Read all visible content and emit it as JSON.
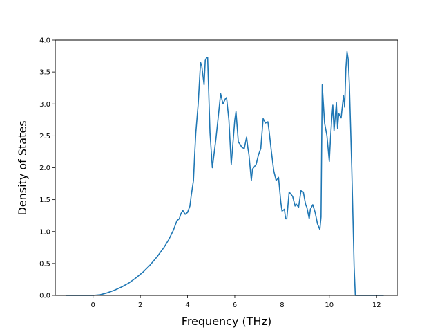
{
  "chart_data": {
    "type": "line",
    "title": "",
    "xlabel": "Frequency (THz)",
    "ylabel": "Density of States",
    "xlim": [
      -1.6,
      12.9
    ],
    "ylim": [
      0.0,
      4.0
    ],
    "xticks": [
      0,
      2,
      4,
      6,
      8,
      10,
      12
    ],
    "xtick_labels": [
      "0",
      "2",
      "4",
      "6",
      "8",
      "10",
      "12"
    ],
    "yticks": [
      0.0,
      0.5,
      1.0,
      1.5,
      2.0,
      2.5,
      3.0,
      3.5,
      4.0
    ],
    "ytick_labels": [
      "0.0",
      "0.5",
      "1.0",
      "1.5",
      "2.0",
      "2.5",
      "3.0",
      "3.5",
      "4.0"
    ],
    "grid": false,
    "line_color": "#1f77b4",
    "series": [
      {
        "x": [
          -1.15,
          0.0,
          0.3,
          0.6,
          0.9,
          1.2,
          1.5,
          1.8,
          2.1,
          2.4,
          2.7,
          3.0,
          3.2,
          3.4,
          3.55,
          3.65,
          3.72,
          3.8,
          3.9,
          4.0,
          4.1,
          4.15,
          4.25,
          4.3,
          4.35,
          4.45,
          4.55,
          4.6,
          4.7,
          4.75,
          4.8,
          4.85,
          4.95,
          5.05,
          5.2,
          5.3,
          5.4,
          5.5,
          5.6,
          5.65,
          5.75,
          5.85,
          6.0,
          6.05,
          6.15,
          6.2,
          6.3,
          6.4,
          6.5,
          6.55,
          6.6,
          6.7,
          6.75,
          6.9,
          7.0,
          7.1,
          7.2,
          7.3,
          7.4,
          7.45,
          7.55,
          7.65,
          7.75,
          7.85,
          7.95,
          8.0,
          8.1,
          8.15,
          8.2,
          8.3,
          8.45,
          8.55,
          8.6,
          8.7,
          8.8,
          8.9,
          9.0,
          9.05,
          9.15,
          9.2,
          9.3,
          9.4,
          9.5,
          9.6,
          9.65,
          9.7,
          9.8,
          9.9,
          10.0,
          10.05,
          10.1,
          10.15,
          10.2,
          10.3,
          10.35,
          10.4,
          10.5,
          10.6,
          10.65,
          10.7,
          10.75,
          10.8,
          10.85,
          10.95,
          11.05,
          11.1,
          12.3
        ],
        "y": [
          0.0,
          0.0,
          0.01,
          0.04,
          0.08,
          0.13,
          0.19,
          0.27,
          0.36,
          0.47,
          0.6,
          0.75,
          0.87,
          1.02,
          1.17,
          1.2,
          1.28,
          1.33,
          1.27,
          1.3,
          1.4,
          1.55,
          1.8,
          2.2,
          2.55,
          3.0,
          3.65,
          3.6,
          3.3,
          3.68,
          3.72,
          3.73,
          2.55,
          2.0,
          2.45,
          2.8,
          3.16,
          3.0,
          3.08,
          3.1,
          2.75,
          2.05,
          2.75,
          2.88,
          2.4,
          2.38,
          2.32,
          2.3,
          2.48,
          2.32,
          2.2,
          1.8,
          1.98,
          2.05,
          2.2,
          2.3,
          2.77,
          2.7,
          2.72,
          2.58,
          2.25,
          1.95,
          1.8,
          1.85,
          1.45,
          1.32,
          1.35,
          1.2,
          1.2,
          1.62,
          1.55,
          1.4,
          1.43,
          1.38,
          1.64,
          1.62,
          1.42,
          1.38,
          1.2,
          1.35,
          1.42,
          1.3,
          1.12,
          1.03,
          1.23,
          3.3,
          2.7,
          2.5,
          2.1,
          2.45,
          2.75,
          2.98,
          2.58,
          3.02,
          2.62,
          2.85,
          2.78,
          3.13,
          2.95,
          3.55,
          3.82,
          3.7,
          3.3,
          2.0,
          0.45,
          0.0,
          0.0
        ]
      }
    ]
  }
}
